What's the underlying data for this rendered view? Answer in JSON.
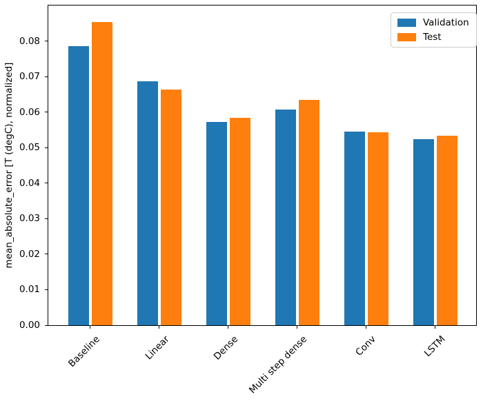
{
  "chart_data": {
    "type": "bar",
    "title": "",
    "xlabel": "",
    "ylabel": "mean_absolute_error [T (degC), normalized]",
    "categories": [
      "Baseline",
      "Linear",
      "Dense",
      "Multi step dense",
      "Conv",
      "LSTM"
    ],
    "series": [
      {
        "name": "Validation",
        "color": "#1f77b4",
        "values": [
          0.0785,
          0.0687,
          0.0572,
          0.0607,
          0.0545,
          0.0524
        ]
      },
      {
        "name": "Test",
        "color": "#ff7f0e",
        "values": [
          0.0853,
          0.0663,
          0.0584,
          0.0634,
          0.0543,
          0.0534
        ]
      }
    ],
    "ylim": [
      0,
      0.09
    ],
    "yticks": [
      0.0,
      0.01,
      0.02,
      0.03,
      0.04,
      0.05,
      0.06,
      0.07,
      0.08
    ],
    "ytick_labels": [
      "0.00",
      "0.01",
      "0.02",
      "0.03",
      "0.04",
      "0.05",
      "0.06",
      "0.07",
      "0.08"
    ],
    "xtick_rotation_deg": 45,
    "legend_position": "upper right",
    "legend_entries": [
      "Validation",
      "Test"
    ],
    "grid": false,
    "bar_width_units": 0.3,
    "bar_offset_units": 0.17
  }
}
